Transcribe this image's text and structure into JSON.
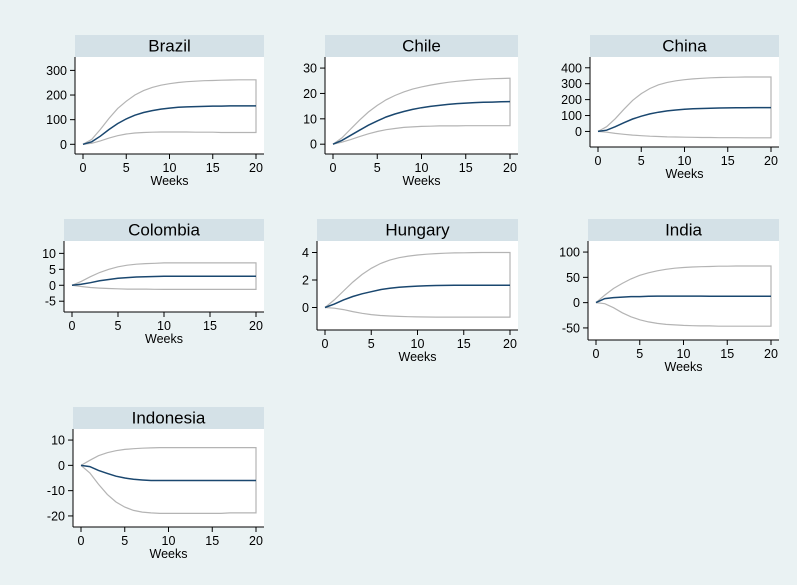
{
  "colors": {
    "background": "#eaf2f3",
    "panel": "#ffffff",
    "title_strip": "#d4e1e7",
    "estimate_line": "#1a476f",
    "band_line": "#b4b4b4"
  },
  "chart_data": [
    {
      "type": "line",
      "title": "Brazil",
      "xlabel": "Weeks",
      "xlim": [
        0,
        20
      ],
      "ylim": [
        -15,
        330
      ],
      "xticks": [
        "0",
        "5",
        "10",
        "15",
        "20"
      ],
      "yticks": [
        "0",
        "100",
        "200",
        "300"
      ],
      "x": [
        0,
        1,
        2,
        3,
        4,
        5,
        6,
        7,
        8,
        9,
        10,
        11,
        12,
        13,
        14,
        15,
        16,
        17,
        18,
        19,
        20
      ],
      "series": [
        {
          "values": [
            0,
            10,
            33,
            60,
            84,
            103,
            118,
            129,
            137,
            143,
            147,
            150,
            152,
            153,
            154,
            155,
            155,
            156,
            156,
            156,
            156
          ]
        },
        {
          "values": [
            0,
            20,
            60,
            105,
            145,
            175,
            200,
            218,
            231,
            240,
            246,
            251,
            254,
            256,
            258,
            259,
            260,
            261,
            262,
            262,
            262
          ]
        },
        {
          "values": [
            0,
            4,
            14,
            25,
            35,
            42,
            46,
            48,
            49,
            50,
            50,
            50,
            50,
            49,
            49,
            49,
            48,
            48,
            48,
            48,
            48
          ]
        }
      ]
    },
    {
      "type": "line",
      "title": "Chile",
      "xlabel": "Weeks",
      "xlim": [
        0,
        20
      ],
      "ylim": [
        -1.5,
        32
      ],
      "xticks": [
        "0",
        "5",
        "10",
        "15",
        "20"
      ],
      "yticks": [
        "0",
        "10",
        "20",
        "30"
      ],
      "x": [
        0,
        1,
        2,
        3,
        4,
        5,
        6,
        7,
        8,
        9,
        10,
        11,
        12,
        13,
        14,
        15,
        16,
        17,
        18,
        19,
        20
      ],
      "series": [
        {
          "values": [
            0,
            1.5,
            3.5,
            5.5,
            7.5,
            9.2,
            10.7,
            11.9,
            12.9,
            13.7,
            14.4,
            14.9,
            15.3,
            15.7,
            16.0,
            16.2,
            16.4,
            16.5,
            16.6,
            16.7,
            16.8
          ]
        },
        {
          "values": [
            0,
            2.5,
            6.0,
            9.5,
            12.7,
            15.3,
            17.5,
            19.2,
            20.6,
            21.7,
            22.6,
            23.3,
            23.9,
            24.4,
            24.8,
            25.1,
            25.4,
            25.6,
            25.8,
            25.9,
            26.0
          ]
        },
        {
          "values": [
            0,
            0.8,
            1.8,
            3.0,
            4.1,
            5.0,
            5.7,
            6.2,
            6.6,
            6.8,
            7.0,
            7.1,
            7.2,
            7.2,
            7.2,
            7.3,
            7.3,
            7.3,
            7.3,
            7.3,
            7.3
          ]
        }
      ]
    },
    {
      "type": "line",
      "title": "China",
      "xlabel": "Weeks",
      "xlim": [
        0,
        20
      ],
      "ylim": [
        -60,
        430
      ],
      "xticks": [
        "0",
        "5",
        "10",
        "15",
        "20"
      ],
      "yticks": [
        "0",
        "100",
        "200",
        "300",
        "400"
      ],
      "x": [
        0,
        1,
        2,
        3,
        4,
        5,
        6,
        7,
        8,
        9,
        10,
        11,
        12,
        13,
        14,
        15,
        16,
        17,
        18,
        19,
        20
      ],
      "series": [
        {
          "values": [
            0,
            8,
            30,
            55,
            78,
            96,
            110,
            121,
            129,
            135,
            139,
            142,
            144,
            146,
            147,
            148,
            149,
            149,
            150,
            150,
            150
          ]
        },
        {
          "values": [
            0,
            30,
            80,
            140,
            195,
            238,
            270,
            293,
            308,
            318,
            325,
            330,
            334,
            337,
            339,
            340,
            341,
            342,
            342,
            342,
            342
          ]
        },
        {
          "values": [
            0,
            -5,
            -12,
            -18,
            -23,
            -27,
            -30,
            -32,
            -34,
            -35,
            -36,
            -37,
            -38,
            -38,
            -39,
            -39,
            -39,
            -40,
            -40,
            -40,
            -40
          ]
        }
      ]
    },
    {
      "type": "line",
      "title": "Colombia",
      "xlabel": "Weeks",
      "xlim": [
        0,
        20
      ],
      "ylim": [
        -6.5,
        12
      ],
      "xticks": [
        "0",
        "5",
        "10",
        "15",
        "20"
      ],
      "yticks": [
        "-5",
        "0",
        "5",
        "10"
      ],
      "x": [
        0,
        1,
        2,
        3,
        4,
        5,
        6,
        7,
        8,
        9,
        10,
        11,
        12,
        13,
        14,
        15,
        16,
        17,
        18,
        19,
        20
      ],
      "series": [
        {
          "values": [
            0,
            0.3,
            0.8,
            1.4,
            1.8,
            2.2,
            2.4,
            2.6,
            2.7,
            2.75,
            2.8,
            2.8,
            2.8,
            2.8,
            2.8,
            2.8,
            2.8,
            2.8,
            2.8,
            2.8,
            2.8
          ]
        },
        {
          "values": [
            0,
            1.2,
            2.7,
            4.0,
            5.0,
            5.8,
            6.3,
            6.6,
            6.8,
            6.9,
            7.0,
            7.0,
            7.0,
            7.0,
            7.0,
            7.0,
            7.0,
            7.0,
            7.0,
            7.0,
            7.0
          ]
        },
        {
          "values": [
            0,
            -0.4,
            -0.7,
            -0.9,
            -1.0,
            -1.1,
            -1.2,
            -1.2,
            -1.2,
            -1.25,
            -1.3,
            -1.3,
            -1.3,
            -1.3,
            -1.3,
            -1.3,
            -1.3,
            -1.3,
            -1.3,
            -1.3,
            -1.3
          ]
        }
      ]
    },
    {
      "type": "line",
      "title": "Hungary",
      "xlabel": "Weeks",
      "xlim": [
        0,
        20
      ],
      "ylim": [
        -1.2,
        4.4
      ],
      "xticks": [
        "0",
        "5",
        "10",
        "15",
        "20"
      ],
      "yticks": [
        "0",
        "2",
        "4"
      ],
      "x": [
        0,
        1,
        2,
        3,
        4,
        5,
        6,
        7,
        8,
        9,
        10,
        11,
        12,
        13,
        14,
        15,
        16,
        17,
        18,
        19,
        20
      ],
      "series": [
        {
          "values": [
            0,
            0.25,
            0.55,
            0.8,
            1.0,
            1.15,
            1.3,
            1.4,
            1.47,
            1.52,
            1.56,
            1.58,
            1.6,
            1.61,
            1.62,
            1.62,
            1.62,
            1.62,
            1.62,
            1.62,
            1.62
          ]
        },
        {
          "values": [
            0,
            0.55,
            1.2,
            1.85,
            2.4,
            2.85,
            3.2,
            3.45,
            3.62,
            3.74,
            3.82,
            3.88,
            3.92,
            3.95,
            3.97,
            3.98,
            3.99,
            4.0,
            4.0,
            4.0,
            4.0
          ]
        },
        {
          "values": [
            0,
            -0.05,
            -0.15,
            -0.3,
            -0.42,
            -0.52,
            -0.58,
            -0.62,
            -0.65,
            -0.67,
            -0.68,
            -0.69,
            -0.7,
            -0.7,
            -0.7,
            -0.7,
            -0.7,
            -0.7,
            -0.7,
            -0.7,
            -0.7
          ]
        }
      ]
    },
    {
      "type": "line",
      "title": "India",
      "xlabel": "Weeks",
      "xlim": [
        0,
        20
      ],
      "ylim": [
        -62,
        110
      ],
      "xticks": [
        "0",
        "5",
        "10",
        "15",
        "20"
      ],
      "yticks": [
        "-50",
        "0",
        "50",
        "100"
      ],
      "x": [
        0,
        1,
        2,
        3,
        4,
        5,
        6,
        7,
        8,
        9,
        10,
        11,
        12,
        13,
        14,
        15,
        16,
        17,
        18,
        19,
        20
      ],
      "series": [
        {
          "values": [
            0,
            8,
            10,
            11,
            12,
            12,
            12.5,
            13,
            13,
            13,
            13,
            13,
            13,
            12.5,
            12.5,
            12.5,
            12.5,
            12.5,
            12.5,
            12.5,
            12.5
          ]
        },
        {
          "values": [
            0,
            15,
            28,
            38,
            47,
            54,
            59,
            63,
            66,
            68,
            69.5,
            70.5,
            71,
            71.5,
            72,
            72,
            72.5,
            72.5,
            72.5,
            72.5,
            72.5
          ]
        },
        {
          "values": [
            0,
            -2,
            -10,
            -20,
            -28,
            -34,
            -38,
            -41,
            -43,
            -44,
            -45,
            -45.5,
            -46,
            -46,
            -46.5,
            -46.5,
            -46.5,
            -46.5,
            -46.5,
            -46.5,
            -46.5
          ]
        }
      ]
    },
    {
      "type": "line",
      "title": "Indonesia",
      "xlabel": "Weeks",
      "xlim": [
        0,
        20
      ],
      "ylim": [
        -22,
        12
      ],
      "xticks": [
        "0",
        "5",
        "10",
        "15",
        "20"
      ],
      "yticks": [
        "-20",
        "-10",
        "0",
        "10"
      ],
      "x": [
        0,
        1,
        2,
        3,
        4,
        5,
        6,
        7,
        8,
        9,
        10,
        11,
        12,
        13,
        14,
        15,
        16,
        17,
        18,
        19,
        20
      ],
      "series": [
        {
          "values": [
            0,
            -0.5,
            -2,
            -3.2,
            -4.3,
            -5.0,
            -5.5,
            -5.8,
            -6.0,
            -6.0,
            -6.0,
            -6.0,
            -6.0,
            -6.0,
            -6.0,
            -6.0,
            -6.0,
            -6.0,
            -6.0,
            -6.0,
            -6.0
          ]
        },
        {
          "values": [
            0,
            2.0,
            3.8,
            5.0,
            5.8,
            6.3,
            6.6,
            6.8,
            6.9,
            7.0,
            7.0,
            7.0,
            7.0,
            7.0,
            7.0,
            7.0,
            7.0,
            7.0,
            7.0,
            7.0,
            7.0
          ]
        },
        {
          "values": [
            0,
            -3,
            -7.5,
            -11.5,
            -14.5,
            -16.5,
            -17.8,
            -18.5,
            -18.8,
            -19.0,
            -19.0,
            -19.0,
            -19.0,
            -19.0,
            -19.0,
            -19.0,
            -19.0,
            -18.8,
            -18.8,
            -18.8,
            -18.8
          ]
        }
      ]
    }
  ]
}
